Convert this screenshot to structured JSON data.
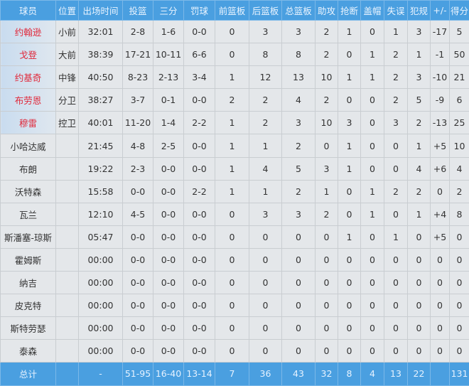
{
  "headers": [
    "球员",
    "位置",
    "出场时间",
    "投篮",
    "三分",
    "罚球",
    "前篮板",
    "后篮板",
    "总篮板",
    "助攻",
    "抢断",
    "盖帽",
    "失误",
    "犯规",
    "+/-",
    "得分"
  ],
  "starter_name_color": "#e0283a",
  "header_color": "#4a9fe0",
  "rows": [
    [
      "约翰逊",
      "小前",
      "32:01",
      "2-8",
      "1-6",
      "0-0",
      "0",
      "3",
      "3",
      "2",
      "1",
      "0",
      "1",
      "3",
      "-17",
      "5"
    ],
    [
      "戈登",
      "大前",
      "38:39",
      "17-21",
      "10-11",
      "6-6",
      "0",
      "8",
      "8",
      "2",
      "0",
      "1",
      "2",
      "1",
      "-1",
      "50"
    ],
    [
      "约基奇",
      "中锋",
      "40:50",
      "8-23",
      "2-13",
      "3-4",
      "1",
      "12",
      "13",
      "10",
      "1",
      "1",
      "2",
      "3",
      "-10",
      "21"
    ],
    [
      "布劳恩",
      "分卫",
      "38:27",
      "3-7",
      "0-1",
      "0-0",
      "2",
      "2",
      "4",
      "2",
      "0",
      "0",
      "2",
      "5",
      "-9",
      "6"
    ],
    [
      "穆雷",
      "控卫",
      "40:01",
      "11-20",
      "1-4",
      "2-2",
      "1",
      "2",
      "3",
      "10",
      "3",
      "0",
      "3",
      "2",
      "-13",
      "25"
    ],
    [
      "小哈达威",
      "",
      "21:45",
      "4-8",
      "2-5",
      "0-0",
      "1",
      "1",
      "2",
      "0",
      "1",
      "0",
      "0",
      "1",
      "+5",
      "10"
    ],
    [
      "布朗",
      "",
      "19:22",
      "2-3",
      "0-0",
      "0-0",
      "1",
      "4",
      "5",
      "3",
      "1",
      "0",
      "0",
      "4",
      "+6",
      "4"
    ],
    [
      "沃特森",
      "",
      "15:58",
      "0-0",
      "0-0",
      "2-2",
      "1",
      "1",
      "2",
      "1",
      "0",
      "1",
      "2",
      "2",
      "0",
      "2"
    ],
    [
      "瓦兰",
      "",
      "12:10",
      "4-5",
      "0-0",
      "0-0",
      "0",
      "3",
      "3",
      "2",
      "0",
      "1",
      "0",
      "1",
      "+4",
      "8"
    ],
    [
      "斯潘塞-琼斯",
      "",
      "05:47",
      "0-0",
      "0-0",
      "0-0",
      "0",
      "0",
      "0",
      "0",
      "1",
      "0",
      "1",
      "0",
      "+5",
      "0"
    ],
    [
      "霍姆斯",
      "",
      "00:00",
      "0-0",
      "0-0",
      "0-0",
      "0",
      "0",
      "0",
      "0",
      "0",
      "0",
      "0",
      "0",
      "0",
      "0"
    ],
    [
      "纳吉",
      "",
      "00:00",
      "0-0",
      "0-0",
      "0-0",
      "0",
      "0",
      "0",
      "0",
      "0",
      "0",
      "0",
      "0",
      "0",
      "0"
    ],
    [
      "皮克特",
      "",
      "00:00",
      "0-0",
      "0-0",
      "0-0",
      "0",
      "0",
      "0",
      "0",
      "0",
      "0",
      "0",
      "0",
      "0",
      "0"
    ],
    [
      "斯特劳瑟",
      "",
      "00:00",
      "0-0",
      "0-0",
      "0-0",
      "0",
      "0",
      "0",
      "0",
      "0",
      "0",
      "0",
      "0",
      "0",
      "0"
    ],
    [
      "泰森",
      "",
      "00:00",
      "0-0",
      "0-0",
      "0-0",
      "0",
      "0",
      "0",
      "0",
      "0",
      "0",
      "0",
      "0",
      "0",
      "0"
    ]
  ],
  "total": [
    "总计",
    "",
    "-",
    "51-95",
    "16-40",
    "13-14",
    "7",
    "36",
    "43",
    "32",
    "8",
    "4",
    "13",
    "22",
    "",
    "131"
  ]
}
